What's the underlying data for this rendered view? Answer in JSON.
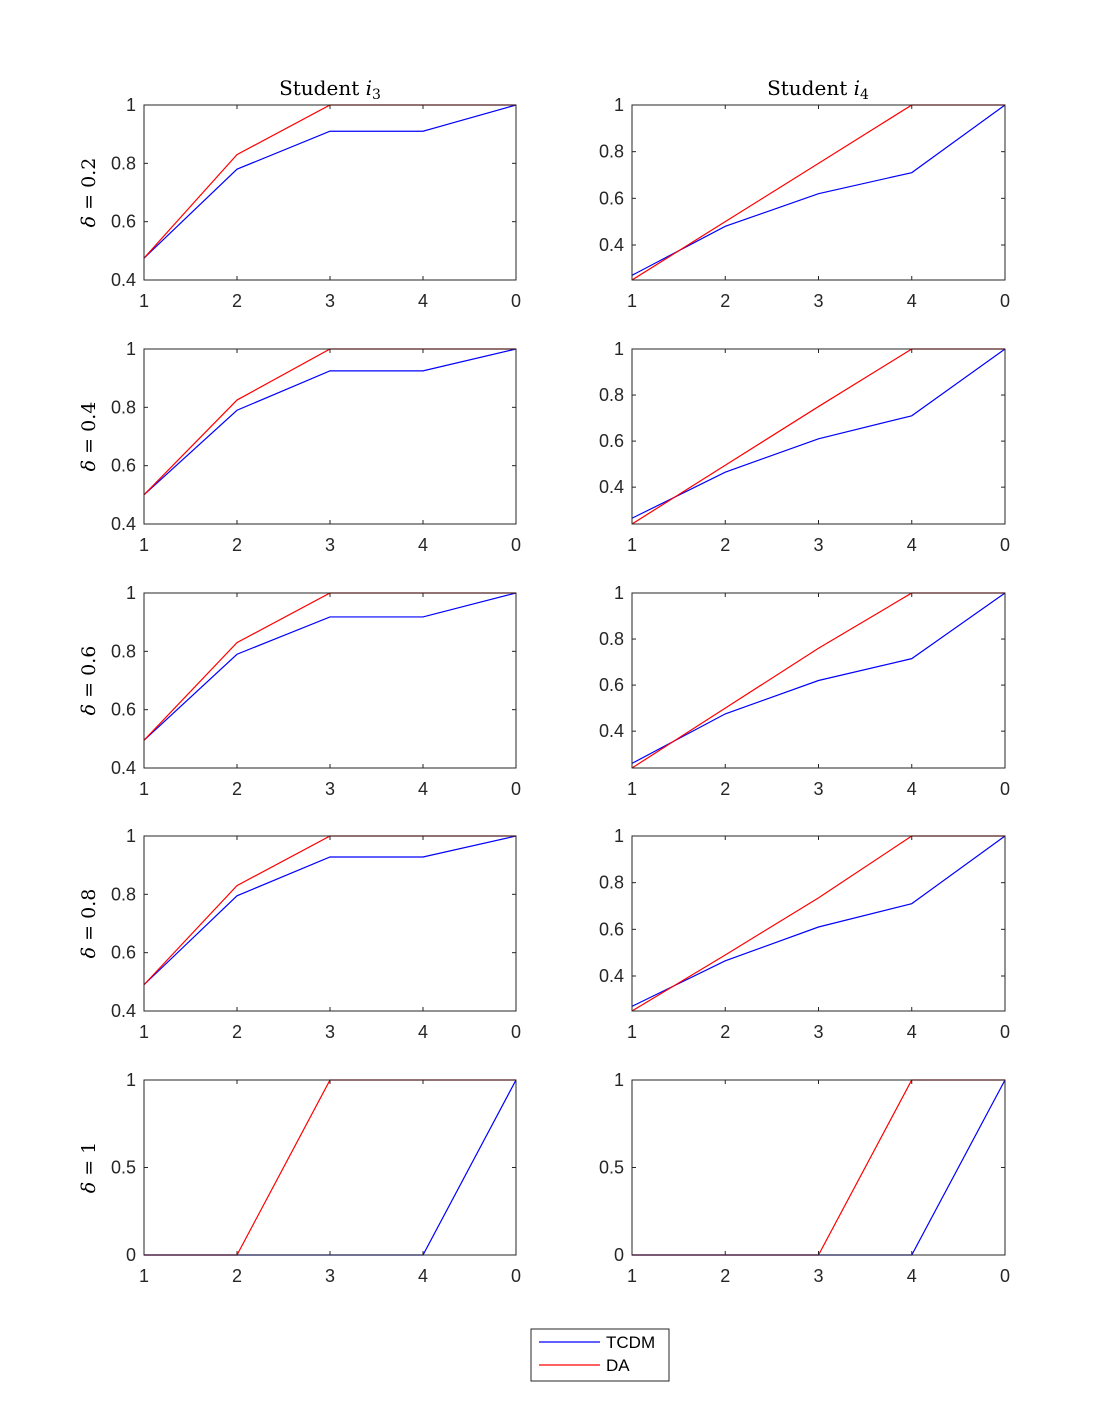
{
  "chart_data": {
    "type": "line",
    "x": [
      "1",
      "2",
      "3",
      "4",
      "0"
    ],
    "columns": [
      {
        "title_main": "Student ",
        "title_var": "i",
        "title_sub": "3"
      },
      {
        "title_main": "Student ",
        "title_var": "i",
        "title_sub": "4"
      }
    ],
    "rows": [
      {
        "label_var": "δ",
        "label_eq": " = ",
        "label_value": "0.2"
      },
      {
        "label_var": "δ",
        "label_eq": " = ",
        "label_value": "0.4"
      },
      {
        "label_var": "δ",
        "label_eq": " = ",
        "label_value": "0.6"
      },
      {
        "label_var": "δ",
        "label_eq": " = ",
        "label_value": "0.8"
      },
      {
        "label_var": "δ",
        "label_eq": " = ",
        "label_value": "1"
      }
    ],
    "legend": {
      "placement": "bottom-center",
      "entries": [
        "TCDM",
        "DA"
      ]
    },
    "series_colors": {
      "TCDM": "#0000ff",
      "DA": "#ff0000"
    },
    "panels": [
      {
        "row": 0,
        "col": 0,
        "ylim": [
          0.4,
          1
        ],
        "yticks": [
          "0.4",
          "0.6",
          "0.8",
          "1"
        ],
        "yvals": [
          0.4,
          0.6,
          0.8,
          1
        ],
        "series": [
          {
            "name": "TCDM",
            "values": [
              0.475,
              0.78,
              0.91,
              0.91,
              1
            ]
          },
          {
            "name": "DA",
            "values": [
              0.475,
              0.83,
              1,
              1,
              1
            ]
          }
        ]
      },
      {
        "row": 0,
        "col": 1,
        "ylim": [
          0.25,
          1
        ],
        "yticks": [
          "0.4",
          "0.6",
          "0.8",
          "1"
        ],
        "yvals": [
          0.4,
          0.6,
          0.8,
          1
        ],
        "series": [
          {
            "name": "TCDM",
            "values": [
              0.27,
              0.48,
              0.62,
              0.71,
              1
            ]
          },
          {
            "name": "DA",
            "values": [
              0.25,
              0.5,
              0.75,
              1,
              1
            ]
          }
        ]
      },
      {
        "row": 1,
        "col": 0,
        "ylim": [
          0.4,
          1
        ],
        "yticks": [
          "0.4",
          "0.6",
          "0.8",
          "1"
        ],
        "yvals": [
          0.4,
          0.6,
          0.8,
          1
        ],
        "series": [
          {
            "name": "TCDM",
            "values": [
              0.5,
              0.79,
              0.925,
              0.925,
              1
            ]
          },
          {
            "name": "DA",
            "values": [
              0.5,
              0.825,
              1,
              1,
              1
            ]
          }
        ]
      },
      {
        "row": 1,
        "col": 1,
        "ylim": [
          0.24,
          1
        ],
        "yticks": [
          "0.4",
          "0.6",
          "0.8",
          "1"
        ],
        "yvals": [
          0.4,
          0.6,
          0.8,
          1
        ],
        "series": [
          {
            "name": "TCDM",
            "values": [
              0.265,
              0.465,
              0.61,
              0.71,
              1
            ]
          },
          {
            "name": "DA",
            "values": [
              0.24,
              0.495,
              0.75,
              1,
              1
            ]
          }
        ]
      },
      {
        "row": 2,
        "col": 0,
        "ylim": [
          0.4,
          1
        ],
        "yticks": [
          "0.4",
          "0.6",
          "0.8",
          "1"
        ],
        "yvals": [
          0.4,
          0.6,
          0.8,
          1
        ],
        "series": [
          {
            "name": "TCDM",
            "values": [
              0.495,
              0.79,
              0.918,
              0.918,
              1
            ]
          },
          {
            "name": "DA",
            "values": [
              0.495,
              0.83,
              1,
              1,
              1
            ]
          }
        ]
      },
      {
        "row": 2,
        "col": 1,
        "ylim": [
          0.24,
          1
        ],
        "yticks": [
          "0.4",
          "0.6",
          "0.8",
          "1"
        ],
        "yvals": [
          0.4,
          0.6,
          0.8,
          1
        ],
        "series": [
          {
            "name": "TCDM",
            "values": [
              0.26,
              0.475,
              0.62,
              0.715,
              1
            ]
          },
          {
            "name": "DA",
            "values": [
              0.24,
              0.5,
              0.76,
              1,
              1
            ]
          }
        ]
      },
      {
        "row": 3,
        "col": 0,
        "ylim": [
          0.4,
          1
        ],
        "yticks": [
          "0.4",
          "0.6",
          "0.8",
          "1"
        ],
        "yvals": [
          0.4,
          0.6,
          0.8,
          1
        ],
        "series": [
          {
            "name": "TCDM",
            "values": [
              0.49,
              0.795,
              0.928,
              0.928,
              1
            ]
          },
          {
            "name": "DA",
            "values": [
              0.49,
              0.83,
              1,
              1,
              1
            ]
          }
        ]
      },
      {
        "row": 3,
        "col": 1,
        "ylim": [
          0.25,
          1
        ],
        "yticks": [
          "0.4",
          "0.6",
          "0.8",
          "1"
        ],
        "yvals": [
          0.4,
          0.6,
          0.8,
          1
        ],
        "series": [
          {
            "name": "TCDM",
            "values": [
              0.27,
              0.465,
              0.61,
              0.71,
              1
            ]
          },
          {
            "name": "DA",
            "values": [
              0.25,
              0.49,
              0.735,
              1,
              1
            ]
          }
        ]
      },
      {
        "row": 4,
        "col": 0,
        "ylim": [
          0,
          1
        ],
        "yticks": [
          "0",
          "0.5",
          "1"
        ],
        "yvals": [
          0,
          0.5,
          1
        ],
        "series": [
          {
            "name": "TCDM",
            "values": [
              0,
              0,
              0,
              0,
              1
            ]
          },
          {
            "name": "DA",
            "values": [
              0,
              0,
              1,
              1,
              1
            ]
          }
        ]
      },
      {
        "row": 4,
        "col": 1,
        "ylim": [
          0,
          1
        ],
        "yticks": [
          "0",
          "0.5",
          "1"
        ],
        "yvals": [
          0,
          0.5,
          1
        ],
        "series": [
          {
            "name": "TCDM",
            "values": [
              0,
              0,
              0,
              0,
              1
            ]
          },
          {
            "name": "DA",
            "values": [
              0,
              0,
              0,
              1,
              1
            ]
          }
        ]
      }
    ]
  }
}
